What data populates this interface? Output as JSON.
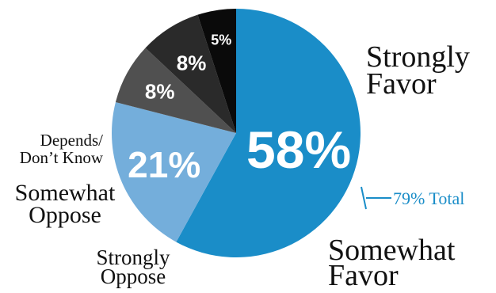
{
  "chart_data": {
    "type": "pie",
    "title": "",
    "slices": [
      {
        "value": 58,
        "label": "58%",
        "category_lines": [
          "Strongly",
          "Favor"
        ],
        "color": "#1a8dc8"
      },
      {
        "value": 21,
        "label": "21%",
        "category_lines": [
          "Somewhat",
          "Favor"
        ],
        "color": "#74aedb"
      },
      {
        "value": 8,
        "label": "8%",
        "category_lines": [
          "Strongly",
          "Oppose"
        ],
        "color": "#505050"
      },
      {
        "value": 8,
        "label": "8%",
        "category_lines": [
          "Somewhat",
          "Oppose"
        ],
        "color": "#2a2a2a"
      },
      {
        "value": 5,
        "label": "5%",
        "category_lines": [
          "Depends/",
          "Don’t Know"
        ],
        "color": "#0a0a0a"
      }
    ],
    "annotation": {
      "text": "79% Total",
      "color": "#1a8dc8"
    }
  }
}
